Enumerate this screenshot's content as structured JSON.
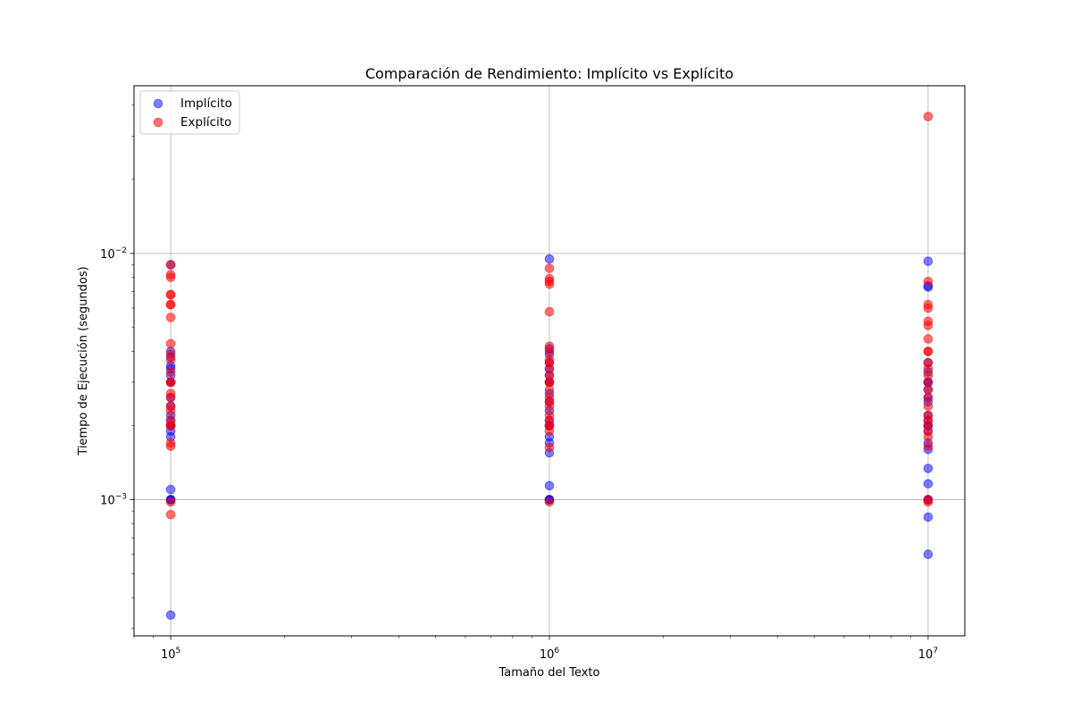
{
  "chart_data": {
    "type": "scatter",
    "title": "Comparación de Rendimiento: Implícito vs Explícito",
    "xlabel": "Tamaño del Texto",
    "ylabel": "Tiempo de Ejecución (segundos)",
    "x_scale": "log",
    "y_scale": "log",
    "xlim": [
      80000,
      12500000
    ],
    "ylim": [
      0.00028,
      0.048
    ],
    "x_ticks": [
      {
        "value": 100000,
        "base": "10",
        "exp": "5"
      },
      {
        "value": 1000000,
        "base": "10",
        "exp": "6"
      },
      {
        "value": 10000000,
        "base": "10",
        "exp": "7"
      }
    ],
    "y_ticks": [
      {
        "value": 0.001,
        "base": "10",
        "exp": "−3"
      },
      {
        "value": 0.01,
        "base": "10",
        "exp": "−2"
      }
    ],
    "grid": true,
    "legend_position": "upper-left",
    "series": [
      {
        "name": "Implícito",
        "color": "#0000ff",
        "alpha": 0.5,
        "points": [
          {
            "x": 100000,
            "y": 0.00034
          },
          {
            "x": 100000,
            "y": 0.001
          },
          {
            "x": 100000,
            "y": 0.001
          },
          {
            "x": 100000,
            "y": 0.001
          },
          {
            "x": 100000,
            "y": 0.0011
          },
          {
            "x": 100000,
            "y": 0.0018
          },
          {
            "x": 100000,
            "y": 0.0019
          },
          {
            "x": 100000,
            "y": 0.002
          },
          {
            "x": 100000,
            "y": 0.002
          },
          {
            "x": 100000,
            "y": 0.0021
          },
          {
            "x": 100000,
            "y": 0.0022
          },
          {
            "x": 100000,
            "y": 0.0024
          },
          {
            "x": 100000,
            "y": 0.0026
          },
          {
            "x": 100000,
            "y": 0.003
          },
          {
            "x": 100000,
            "y": 0.003
          },
          {
            "x": 100000,
            "y": 0.0032
          },
          {
            "x": 100000,
            "y": 0.0034
          },
          {
            "x": 100000,
            "y": 0.0035
          },
          {
            "x": 100000,
            "y": 0.0038
          },
          {
            "x": 100000,
            "y": 0.004
          },
          {
            "x": 100000,
            "y": 0.009
          },
          {
            "x": 1000000,
            "y": 0.001
          },
          {
            "x": 1000000,
            "y": 0.001
          },
          {
            "x": 1000000,
            "y": 0.001
          },
          {
            "x": 1000000,
            "y": 0.00114
          },
          {
            "x": 1000000,
            "y": 0.00155
          },
          {
            "x": 1000000,
            "y": 0.0017
          },
          {
            "x": 1000000,
            "y": 0.0018
          },
          {
            "x": 1000000,
            "y": 0.002
          },
          {
            "x": 1000000,
            "y": 0.002
          },
          {
            "x": 1000000,
            "y": 0.0021
          },
          {
            "x": 1000000,
            "y": 0.0023
          },
          {
            "x": 1000000,
            "y": 0.0025
          },
          {
            "x": 1000000,
            "y": 0.0027
          },
          {
            "x": 1000000,
            "y": 0.003
          },
          {
            "x": 1000000,
            "y": 0.003
          },
          {
            "x": 1000000,
            "y": 0.0032
          },
          {
            "x": 1000000,
            "y": 0.0034
          },
          {
            "x": 1000000,
            "y": 0.0036
          },
          {
            "x": 1000000,
            "y": 0.0039
          },
          {
            "x": 1000000,
            "y": 0.0041
          },
          {
            "x": 1000000,
            "y": 0.0095
          },
          {
            "x": 10000000,
            "y": 0.0006
          },
          {
            "x": 10000000,
            "y": 0.00085
          },
          {
            "x": 10000000,
            "y": 0.001
          },
          {
            "x": 10000000,
            "y": 0.001
          },
          {
            "x": 10000000,
            "y": 0.00116
          },
          {
            "x": 10000000,
            "y": 0.00134
          },
          {
            "x": 10000000,
            "y": 0.0016
          },
          {
            "x": 10000000,
            "y": 0.0017
          },
          {
            "x": 10000000,
            "y": 0.0019
          },
          {
            "x": 10000000,
            "y": 0.002
          },
          {
            "x": 10000000,
            "y": 0.002
          },
          {
            "x": 10000000,
            "y": 0.0021
          },
          {
            "x": 10000000,
            "y": 0.0022
          },
          {
            "x": 10000000,
            "y": 0.0025
          },
          {
            "x": 10000000,
            "y": 0.0026
          },
          {
            "x": 10000000,
            "y": 0.0028
          },
          {
            "x": 10000000,
            "y": 0.003
          },
          {
            "x": 10000000,
            "y": 0.003
          },
          {
            "x": 10000000,
            "y": 0.0033
          },
          {
            "x": 10000000,
            "y": 0.0036
          },
          {
            "x": 10000000,
            "y": 0.0073
          },
          {
            "x": 10000000,
            "y": 0.0074
          },
          {
            "x": 10000000,
            "y": 0.0093
          }
        ]
      },
      {
        "name": "Explícito",
        "color": "#ff0000",
        "alpha": 0.55,
        "points": [
          {
            "x": 100000,
            "y": 0.00087
          },
          {
            "x": 100000,
            "y": 0.00098
          },
          {
            "x": 100000,
            "y": 0.00165
          },
          {
            "x": 100000,
            "y": 0.0017
          },
          {
            "x": 100000,
            "y": 0.002
          },
          {
            "x": 100000,
            "y": 0.002
          },
          {
            "x": 100000,
            "y": 0.0021
          },
          {
            "x": 100000,
            "y": 0.0023
          },
          {
            "x": 100000,
            "y": 0.0024
          },
          {
            "x": 100000,
            "y": 0.0026
          },
          {
            "x": 100000,
            "y": 0.0027
          },
          {
            "x": 100000,
            "y": 0.003
          },
          {
            "x": 100000,
            "y": 0.003
          },
          {
            "x": 100000,
            "y": 0.0033
          },
          {
            "x": 100000,
            "y": 0.0037
          },
          {
            "x": 100000,
            "y": 0.0039
          },
          {
            "x": 100000,
            "y": 0.0043
          },
          {
            "x": 100000,
            "y": 0.0055
          },
          {
            "x": 100000,
            "y": 0.0062
          },
          {
            "x": 100000,
            "y": 0.0062
          },
          {
            "x": 100000,
            "y": 0.0068
          },
          {
            "x": 100000,
            "y": 0.0068
          },
          {
            "x": 100000,
            "y": 0.008
          },
          {
            "x": 100000,
            "y": 0.0082
          },
          {
            "x": 100000,
            "y": 0.009
          },
          {
            "x": 1000000,
            "y": 0.00098
          },
          {
            "x": 1000000,
            "y": 0.00163
          },
          {
            "x": 1000000,
            "y": 0.0019
          },
          {
            "x": 1000000,
            "y": 0.002
          },
          {
            "x": 1000000,
            "y": 0.002
          },
          {
            "x": 1000000,
            "y": 0.0021
          },
          {
            "x": 1000000,
            "y": 0.0022
          },
          {
            "x": 1000000,
            "y": 0.0024
          },
          {
            "x": 1000000,
            "y": 0.0025
          },
          {
            "x": 1000000,
            "y": 0.0026
          },
          {
            "x": 1000000,
            "y": 0.0028
          },
          {
            "x": 1000000,
            "y": 0.003
          },
          {
            "x": 1000000,
            "y": 0.003
          },
          {
            "x": 1000000,
            "y": 0.0032
          },
          {
            "x": 1000000,
            "y": 0.0034
          },
          {
            "x": 1000000,
            "y": 0.0036
          },
          {
            "x": 1000000,
            "y": 0.0037
          },
          {
            "x": 1000000,
            "y": 0.004
          },
          {
            "x": 1000000,
            "y": 0.0042
          },
          {
            "x": 1000000,
            "y": 0.0058
          },
          {
            "x": 1000000,
            "y": 0.0075
          },
          {
            "x": 1000000,
            "y": 0.0077
          },
          {
            "x": 1000000,
            "y": 0.0079
          },
          {
            "x": 1000000,
            "y": 0.0087
          },
          {
            "x": 10000000,
            "y": 0.00098
          },
          {
            "x": 10000000,
            "y": 0.001
          },
          {
            "x": 10000000,
            "y": 0.00165
          },
          {
            "x": 10000000,
            "y": 0.0018
          },
          {
            "x": 10000000,
            "y": 0.0019
          },
          {
            "x": 10000000,
            "y": 0.002
          },
          {
            "x": 10000000,
            "y": 0.0021
          },
          {
            "x": 10000000,
            "y": 0.0022
          },
          {
            "x": 10000000,
            "y": 0.0024
          },
          {
            "x": 10000000,
            "y": 0.0026
          },
          {
            "x": 10000000,
            "y": 0.0028
          },
          {
            "x": 10000000,
            "y": 0.003
          },
          {
            "x": 10000000,
            "y": 0.0032
          },
          {
            "x": 10000000,
            "y": 0.0034
          },
          {
            "x": 10000000,
            "y": 0.0036
          },
          {
            "x": 10000000,
            "y": 0.004
          },
          {
            "x": 10000000,
            "y": 0.004
          },
          {
            "x": 10000000,
            "y": 0.0045
          },
          {
            "x": 10000000,
            "y": 0.0051
          },
          {
            "x": 10000000,
            "y": 0.0053
          },
          {
            "x": 10000000,
            "y": 0.006
          },
          {
            "x": 10000000,
            "y": 0.0062
          },
          {
            "x": 10000000,
            "y": 0.0077
          },
          {
            "x": 10000000,
            "y": 0.036
          }
        ]
      }
    ]
  }
}
